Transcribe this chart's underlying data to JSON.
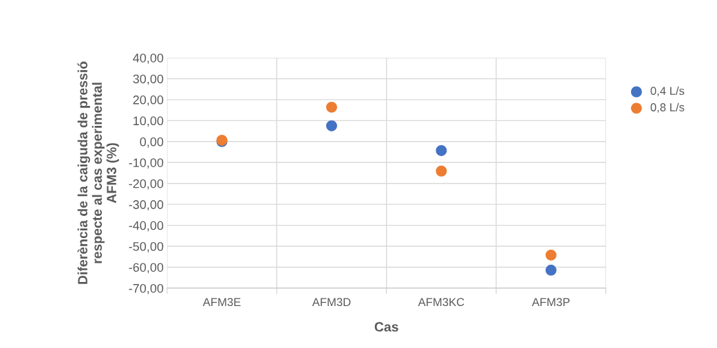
{
  "chart_data": {
    "type": "scatter",
    "xlabel": "Cas",
    "ylabel": "Diferència de la caiguda de pressió\nrespecte al cas experimental\nAFM3 (%)",
    "categories": [
      "AFM3E",
      "AFM3D",
      "AFM3KC",
      "AFM3P"
    ],
    "series": [
      {
        "name": "0,4 L/s",
        "color": "#4472c4",
        "values": [
          0.0,
          7.5,
          -4.3,
          -61.4
        ]
      },
      {
        "name": "0,8 L/s",
        "color": "#ed7d31",
        "values": [
          0.6,
          16.4,
          -14.1,
          -54.2
        ]
      }
    ],
    "ylim": [
      -70,
      40
    ],
    "yticks": [
      {
        "value": -70,
        "label": "-70,00"
      },
      {
        "value": -60,
        "label": "-60,00"
      },
      {
        "value": -50,
        "label": "-50,00"
      },
      {
        "value": -40,
        "label": "-40,00"
      },
      {
        "value": -30,
        "label": "-30,00"
      },
      {
        "value": -20,
        "label": "-20,00"
      },
      {
        "value": -10,
        "label": "-10,00"
      },
      {
        "value": 0,
        "label": "0,00"
      },
      {
        "value": 10,
        "label": "10,00"
      },
      {
        "value": 20,
        "label": "20,00"
      },
      {
        "value": 30,
        "label": "30,00"
      },
      {
        "value": 40,
        "label": "40,00"
      }
    ],
    "grid": true,
    "legend": "right",
    "marker": "circle"
  }
}
